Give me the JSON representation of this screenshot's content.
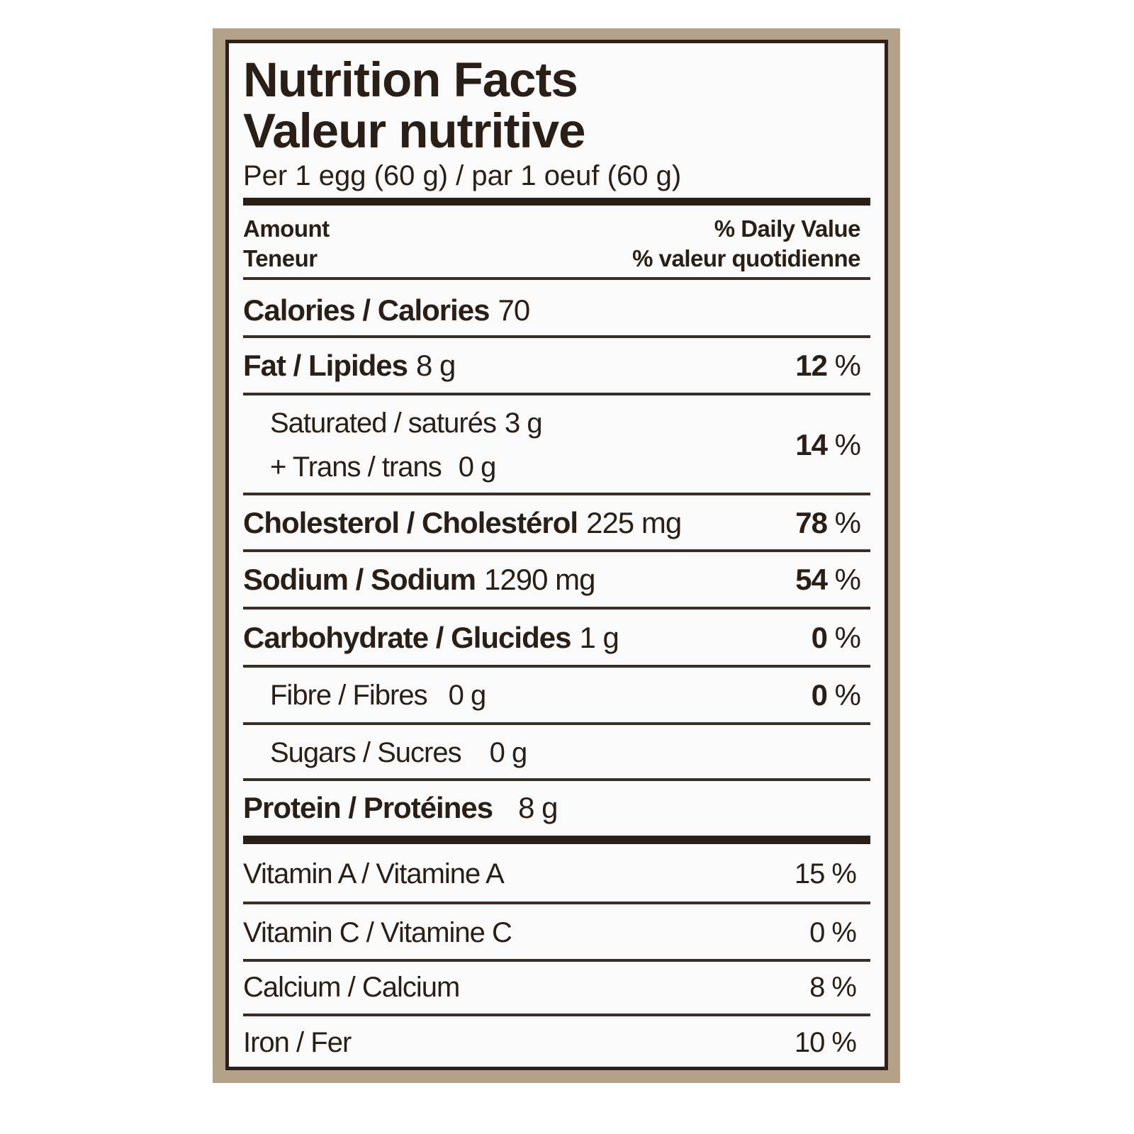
{
  "title_en": "Nutrition Facts",
  "title_fr": "Valeur nutritive",
  "serving": "Per 1 egg (60 g) / par 1 oeuf (60 g)",
  "header": {
    "amount_en": "Amount",
    "amount_fr": "Teneur",
    "dv_en": "% Daily Value",
    "dv_fr": "% valeur quotidienne"
  },
  "nutrients": {
    "calories": {
      "label": "Calories / Calories",
      "amount": "70"
    },
    "fat": {
      "label": "Fat / Lipides",
      "amount": "8 g",
      "dv": "12",
      "unit": " %"
    },
    "saturated": {
      "label": "Saturated / saturés",
      "amount": "3 g"
    },
    "trans": {
      "label": "+ Trans / trans",
      "amount": "0 g"
    },
    "sat_trans_dv": {
      "dv": "14",
      "unit": " %"
    },
    "cholesterol": {
      "label": "Cholesterol / Cholestérol",
      "amount": "225 mg",
      "dv": "78",
      "unit": " %"
    },
    "sodium": {
      "label": "Sodium / Sodium",
      "amount": "1290 mg",
      "dv": "54",
      "unit": " %"
    },
    "carbohydrate": {
      "label": "Carbohydrate / Glucides",
      "amount": "1 g",
      "dv": "0",
      "unit": " %"
    },
    "fibre": {
      "label": "Fibre / Fibres",
      "amount": "0 g",
      "dv": "0",
      "unit": " %"
    },
    "sugars": {
      "label": "Sugars / Sucres",
      "amount": "0 g"
    },
    "protein": {
      "label": "Protein / Protéines",
      "amount": "8 g"
    }
  },
  "vitamins": [
    {
      "label": "Vitamin A / Vitamine A",
      "dv": "15 %"
    },
    {
      "label": "Vitamin C / Vitamine C",
      "dv": "0 %"
    },
    {
      "label": "Calcium / Calcium",
      "dv": "8 %"
    },
    {
      "label": "Iron / Fer",
      "dv": "10 %"
    }
  ],
  "colors": {
    "frame": "#b3a287",
    "ink": "#2a1f17",
    "panel": "#fbfafa"
  }
}
